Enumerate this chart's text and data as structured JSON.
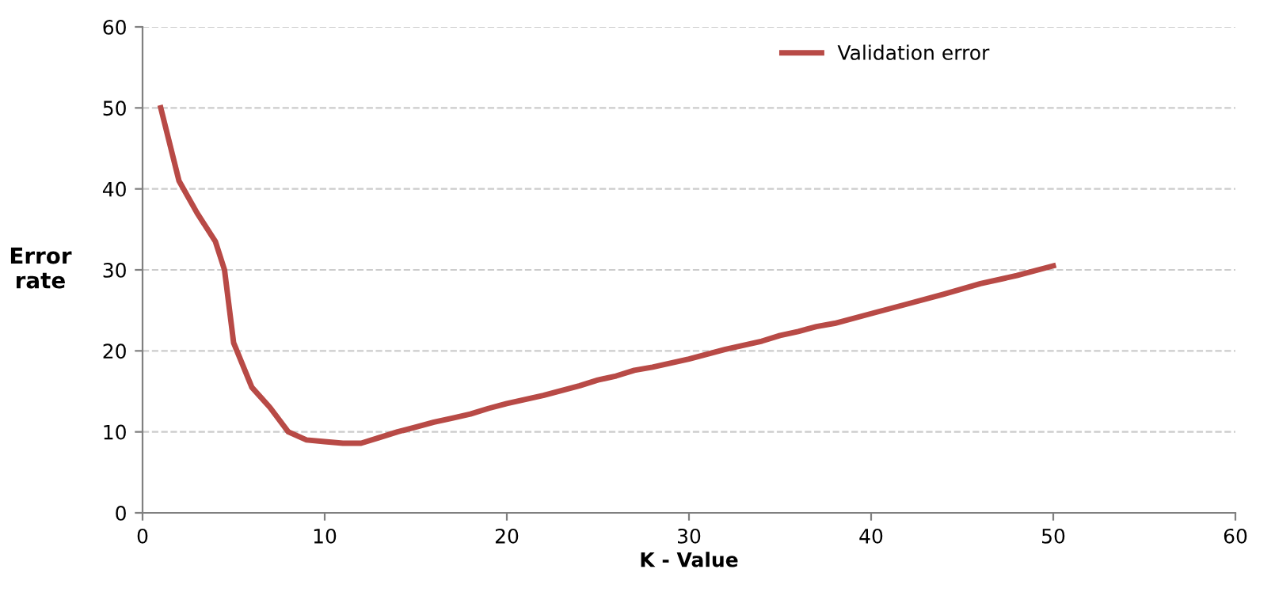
{
  "chart_data": {
    "type": "line",
    "xlabel": "K - Value",
    "ylabel": "Error\nrate",
    "xlim": [
      0,
      60
    ],
    "xticks": [
      0,
      10,
      20,
      30,
      40,
      50,
      60
    ],
    "ylim": [
      0,
      60
    ],
    "yticks": [
      0,
      10,
      20,
      30,
      40,
      50,
      60
    ],
    "grid": "y",
    "legend": "top",
    "line_style": "solid",
    "marker": "none",
    "series": [
      {
        "name": "Validation error",
        "color": "#b84a46",
        "x": [
          1,
          2,
          3,
          4,
          4.5,
          5,
          6,
          7,
          8,
          9,
          10,
          11,
          12,
          13,
          14,
          15,
          16,
          17,
          18,
          19,
          20,
          22,
          24,
          25,
          26,
          27,
          28,
          30,
          32,
          34,
          35,
          36,
          37,
          38,
          40,
          42,
          44,
          46,
          48,
          50
        ],
        "values": [
          50,
          41,
          37,
          33.5,
          30,
          21,
          15.5,
          13,
          10,
          9,
          8.8,
          8.6,
          8.6,
          9.3,
          10,
          10.6,
          11.2,
          11.7,
          12.2,
          12.9,
          13.5,
          14.5,
          15.7,
          16.4,
          16.9,
          17.6,
          18,
          19,
          20.2,
          21.2,
          21.9,
          22.4,
          23,
          23.4,
          24.6,
          25.8,
          27,
          28.3,
          29.3,
          30.5
        ]
      }
    ]
  }
}
